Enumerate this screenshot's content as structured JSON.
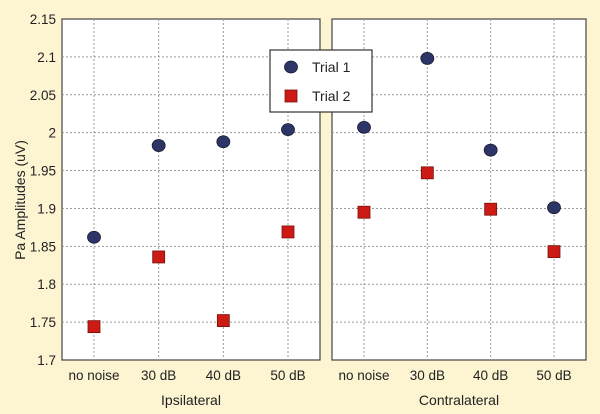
{
  "chart_data": {
    "type": "scatter",
    "ylabel": "Pa Amplitudes (uV)",
    "ylim": [
      1.7,
      2.15
    ],
    "yticks": [
      "1.7",
      "1.75",
      "1.8",
      "1.85",
      "1.9",
      "1.95",
      "2",
      "2.05",
      "2.1",
      "2.15"
    ],
    "categories": [
      "no noise",
      "30 dB",
      "40 dB",
      "50 dB"
    ],
    "grid": true,
    "legend_position": "top-center",
    "panels": [
      {
        "xlabel": "Ipsilateral",
        "series": [
          {
            "name": "Trial 1",
            "marker": "circle",
            "color": "#2d3566",
            "values": [
              1.862,
              1.983,
              1.988,
              2.004
            ]
          },
          {
            "name": "Trial 2",
            "marker": "square",
            "color": "#cc1a14",
            "values": [
              1.744,
              1.836,
              1.752,
              1.869
            ]
          }
        ]
      },
      {
        "xlabel": "Contralateral",
        "series": [
          {
            "name": "Trial 1",
            "marker": "circle",
            "color": "#2d3566",
            "values": [
              2.007,
              2.098,
              1.977,
              1.901
            ]
          },
          {
            "name": "Trial 2",
            "marker": "square",
            "color": "#cc1a14",
            "values": [
              1.895,
              1.947,
              1.899,
              1.843
            ]
          }
        ]
      }
    ],
    "legend": [
      {
        "name": "Trial 1",
        "marker": "circle",
        "color": "#2d3566"
      },
      {
        "name": "Trial 2",
        "marker": "square",
        "color": "#cc1a14"
      }
    ]
  }
}
